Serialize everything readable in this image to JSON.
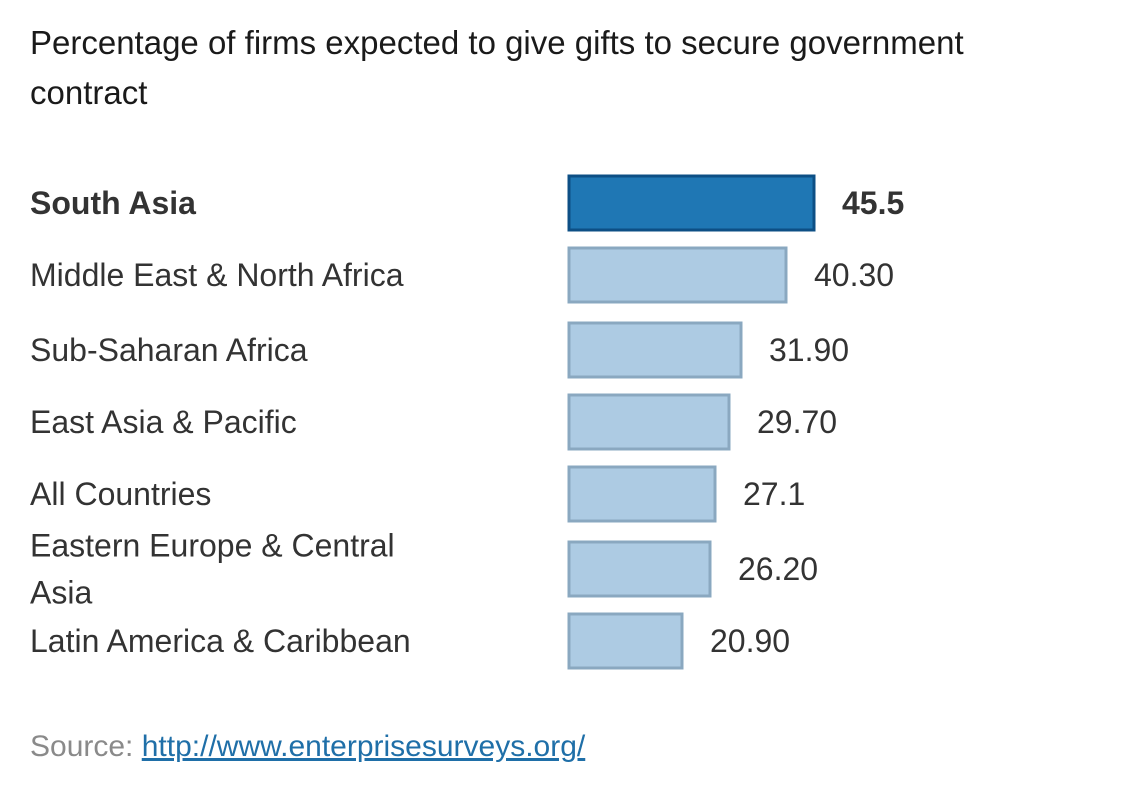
{
  "chart_data": {
    "type": "bar",
    "orientation": "horizontal",
    "title": "Percentage of firms expected to give gifts to secure government contract",
    "categories": [
      "South Asia",
      "Middle East & North Africa",
      "Sub-Saharan Africa",
      "East Asia & Pacific",
      "All Countries",
      "Eastern Europe & Central Asia",
      "Latin America & Caribbean"
    ],
    "values": [
      45.5,
      40.3,
      31.9,
      29.7,
      27.1,
      26.2,
      20.9
    ],
    "value_labels": [
      "45.5",
      "40.30",
      "31.90",
      "29.70",
      "27.1",
      "26.20",
      "20.90"
    ],
    "highlighted": [
      true,
      false,
      false,
      false,
      false,
      false,
      false
    ],
    "xlim": [
      0,
      45.5
    ],
    "grid": false,
    "legend": "none",
    "colors": {
      "highlight_fill": "#1f77b4",
      "highlight_stroke": "#0d4f85",
      "bar_fill": "#adcbe3",
      "bar_stroke": "#8aa8c0",
      "label_text": "#333333"
    }
  },
  "source": {
    "prefix": "Source: ",
    "link_text": "http://www.enterprisesurveys.org/"
  }
}
